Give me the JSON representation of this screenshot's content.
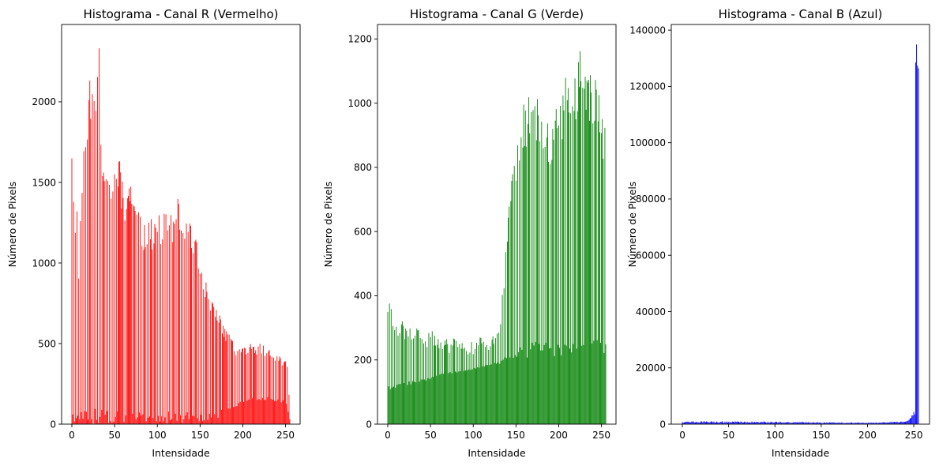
{
  "chart_data": [
    {
      "type": "bar",
      "title": "Histograma - Canal R (Vermelho)",
      "xlabel": "Intensidade",
      "ylabel": "Número de Pixels",
      "color": "#ff0000",
      "xlim": [
        -12,
        267
      ],
      "ylim": [
        0,
        2480
      ],
      "xticks": [
        0,
        50,
        100,
        150,
        200,
        250
      ],
      "yticks": [
        0,
        500,
        1000,
        1500,
        2000
      ],
      "envelope_high": [
        [
          0,
          1860
        ],
        [
          2,
          1440
        ],
        [
          6,
          1330
        ],
        [
          8,
          1040
        ],
        [
          12,
          1600
        ],
        [
          16,
          1800
        ],
        [
          20,
          2170
        ],
        [
          24,
          2200
        ],
        [
          28,
          1950
        ],
        [
          32,
          2370
        ],
        [
          36,
          1600
        ],
        [
          40,
          1580
        ],
        [
          44,
          1500
        ],
        [
          48,
          1650
        ],
        [
          52,
          1630
        ],
        [
          56,
          1640
        ],
        [
          60,
          1500
        ],
        [
          64,
          1400
        ],
        [
          68,
          1550
        ],
        [
          72,
          1380
        ],
        [
          76,
          1300
        ],
        [
          80,
          1330
        ],
        [
          84,
          1250
        ],
        [
          88,
          1300
        ],
        [
          92,
          1280
        ],
        [
          96,
          1270
        ],
        [
          100,
          1320
        ],
        [
          104,
          1300
        ],
        [
          108,
          1320
        ],
        [
          112,
          1290
        ],
        [
          116,
          1320
        ],
        [
          120,
          1250
        ],
        [
          124,
          1420
        ],
        [
          128,
          1320
        ],
        [
          132,
          1290
        ],
        [
          136,
          1280
        ],
        [
          140,
          1240
        ],
        [
          144,
          1170
        ],
        [
          148,
          1090
        ],
        [
          152,
          990
        ],
        [
          156,
          910
        ],
        [
          160,
          840
        ],
        [
          164,
          770
        ],
        [
          168,
          720
        ],
        [
          172,
          690
        ],
        [
          176,
          640
        ],
        [
          180,
          600
        ],
        [
          184,
          560
        ],
        [
          188,
          530
        ],
        [
          192,
          500
        ],
        [
          196,
          490
        ],
        [
          200,
          480
        ],
        [
          204,
          490
        ],
        [
          208,
          500
        ],
        [
          212,
          490
        ],
        [
          216,
          470
        ],
        [
          220,
          500
        ],
        [
          224,
          490
        ],
        [
          228,
          470
        ],
        [
          232,
          460
        ],
        [
          236,
          460
        ],
        [
          240,
          440
        ],
        [
          244,
          430
        ],
        [
          248,
          400
        ],
        [
          252,
          380
        ],
        [
          255,
          120
        ]
      ],
      "envelope_low": [
        [
          0,
          0
        ],
        [
          60,
          0
        ],
        [
          100,
          0
        ],
        [
          140,
          10
        ],
        [
          170,
          30
        ],
        [
          180,
          80
        ],
        [
          190,
          100
        ],
        [
          200,
          130
        ],
        [
          210,
          140
        ],
        [
          220,
          150
        ],
        [
          230,
          150
        ],
        [
          240,
          140
        ],
        [
          250,
          130
        ],
        [
          255,
          30
        ]
      ]
    },
    {
      "type": "bar",
      "title": "Histograma - Canal G (Verde)",
      "xlabel": "Intensidade",
      "ylabel": "Número de Pixels",
      "color": "#008000",
      "xlim": [
        -12,
        267
      ],
      "ylim": [
        0,
        1245
      ],
      "xticks": [
        0,
        50,
        100,
        150,
        200,
        250
      ],
      "yticks": [
        0,
        200,
        400,
        600,
        800,
        1000,
        1200
      ],
      "envelope_high": [
        [
          0,
          390
        ],
        [
          4,
          370
        ],
        [
          8,
          310
        ],
        [
          12,
          320
        ],
        [
          16,
          335
        ],
        [
          20,
          300
        ],
        [
          24,
          310
        ],
        [
          28,
          300
        ],
        [
          32,
          305
        ],
        [
          36,
          295
        ],
        [
          40,
          290
        ],
        [
          44,
          280
        ],
        [
          48,
          285
        ],
        [
          52,
          290
        ],
        [
          56,
          280
        ],
        [
          60,
          270
        ],
        [
          64,
          265
        ],
        [
          68,
          270
        ],
        [
          72,
          260
        ],
        [
          76,
          275
        ],
        [
          80,
          270
        ],
        [
          84,
          265
        ],
        [
          88,
          255
        ],
        [
          92,
          250
        ],
        [
          96,
          260
        ],
        [
          100,
          255
        ],
        [
          104,
          260
        ],
        [
          108,
          270
        ],
        [
          112,
          275
        ],
        [
          116,
          265
        ],
        [
          120,
          270
        ],
        [
          124,
          280
        ],
        [
          128,
          300
        ],
        [
          132,
          350
        ],
        [
          136,
          480
        ],
        [
          140,
          620
        ],
        [
          144,
          740
        ],
        [
          148,
          820
        ],
        [
          152,
          890
        ],
        [
          156,
          960
        ],
        [
          160,
          1010
        ],
        [
          164,
          1020
        ],
        [
          168,
          1030
        ],
        [
          172,
          1040
        ],
        [
          176,
          1020
        ],
        [
          180,
          1000
        ],
        [
          184,
          980
        ],
        [
          188,
          950
        ],
        [
          192,
          940
        ],
        [
          196,
          1000
        ],
        [
          200,
          1010
        ],
        [
          204,
          1040
        ],
        [
          208,
          1100
        ],
        [
          212,
          1060
        ],
        [
          216,
          1050
        ],
        [
          220,
          1100
        ],
        [
          224,
          1190
        ],
        [
          228,
          1100
        ],
        [
          232,
          1110
        ],
        [
          236,
          1100
        ],
        [
          240,
          1080
        ],
        [
          244,
          1070
        ],
        [
          248,
          1020
        ],
        [
          252,
          960
        ],
        [
          255,
          940
        ]
      ],
      "envelope_low": [
        [
          0,
          100
        ],
        [
          20,
          120
        ],
        [
          40,
          130
        ],
        [
          60,
          150
        ],
        [
          80,
          160
        ],
        [
          100,
          170
        ],
        [
          120,
          185
        ],
        [
          140,
          190
        ],
        [
          160,
          200
        ],
        [
          180,
          210
        ],
        [
          200,
          210
        ],
        [
          220,
          220
        ],
        [
          240,
          230
        ],
        [
          255,
          210
        ]
      ]
    },
    {
      "type": "bar",
      "title": "Histograma - Canal B (Azul)",
      "xlabel": "Intensidade",
      "ylabel": "Número de Pixels",
      "color": "#0000ff",
      "xlim": [
        -12,
        267
      ],
      "ylim": [
        0,
        142000
      ],
      "xticks": [
        0,
        50,
        100,
        150,
        200,
        250
      ],
      "yticks": [
        0,
        20000,
        40000,
        60000,
        80000,
        100000,
        120000,
        140000
      ],
      "envelope_high": [
        [
          0,
          1100
        ],
        [
          20,
          1000
        ],
        [
          40,
          1050
        ],
        [
          60,
          1000
        ],
        [
          80,
          950
        ],
        [
          100,
          900
        ],
        [
          120,
          800
        ],
        [
          140,
          700
        ],
        [
          160,
          650
        ],
        [
          180,
          600
        ],
        [
          200,
          600
        ],
        [
          220,
          700
        ],
        [
          240,
          1000
        ],
        [
          244,
          1300
        ],
        [
          246,
          2200
        ],
        [
          248,
          3200
        ],
        [
          249,
          4000
        ],
        [
          250,
          4500
        ],
        [
          251,
          3500
        ],
        [
          252,
          130000
        ],
        [
          253,
          135500
        ],
        [
          254,
          129000
        ],
        [
          255,
          128500
        ]
      ],
      "envelope_low": [
        [
          0,
          300
        ],
        [
          100,
          300
        ],
        [
          200,
          200
        ],
        [
          240,
          500
        ],
        [
          250,
          2500
        ],
        [
          251,
          2000
        ],
        [
          252,
          125000
        ],
        [
          253,
          128000
        ],
        [
          254,
          125000
        ],
        [
          255,
          125000
        ]
      ]
    }
  ]
}
